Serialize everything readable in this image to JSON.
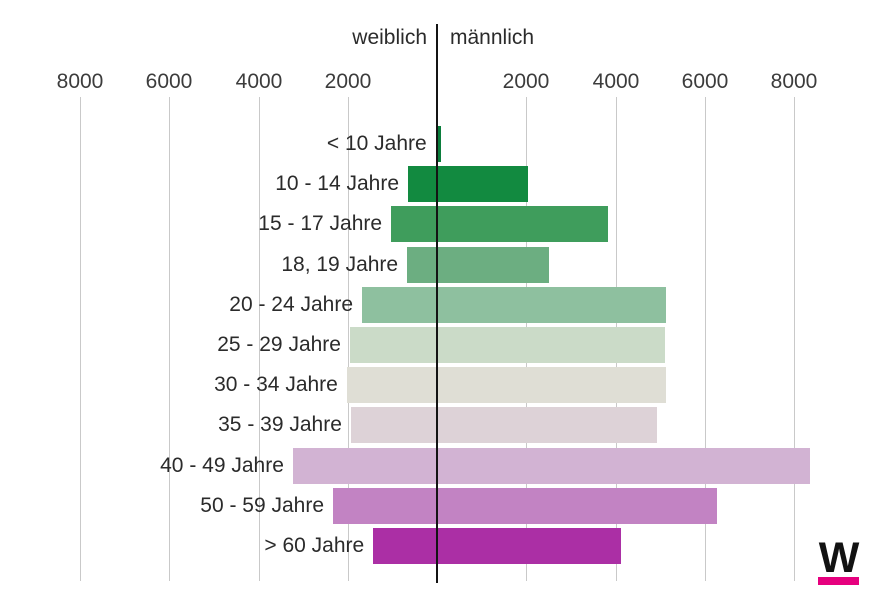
{
  "chart_data": {
    "type": "bar",
    "variant": "population-pyramid",
    "left_header": "weiblich",
    "right_header": "männlich",
    "categories": [
      "< 10 Jahre",
      "10 - 14 Jahre",
      "15 - 17 Jahre",
      "18, 19 Jahre",
      "20 - 24 Jahre",
      "25 - 29 Jahre",
      "30 - 34 Jahre",
      "35 - 39 Jahre",
      "40 - 49 Jahre",
      "50 - 59 Jahre",
      "> 60 Jahre"
    ],
    "series": [
      {
        "name": "weiblich",
        "values": [
          30,
          650,
          1030,
          670,
          1680,
          1950,
          2020,
          1930,
          3230,
          2330,
          1430
        ]
      },
      {
        "name": "männlich",
        "values": [
          90,
          2050,
          3830,
          2510,
          5130,
          5110,
          5130,
          4930,
          8360,
          6270,
          4120
        ]
      }
    ],
    "row_colors": [
      "#0b7d3c",
      "#128a40",
      "#3f9d5c",
      "#6cae81",
      "#8ec09f",
      "#cbdbc8",
      "#dfded5",
      "#ddd2d7",
      "#d2b3d3",
      "#c283c3",
      "#ab2fa5"
    ],
    "axis": {
      "tick_step": 2000,
      "tick_count_per_side": 4,
      "tick_labels_left": [
        "8000",
        "6000",
        "4000",
        "2000"
      ],
      "tick_labels_right": [
        "2000",
        "4000",
        "6000",
        "8000"
      ],
      "max_value": 8930
    },
    "grid": true,
    "legend_position": "none",
    "xlabel": "",
    "ylabel": ""
  },
  "logo": {
    "letter": "W",
    "underline_color": "#e6007e"
  }
}
